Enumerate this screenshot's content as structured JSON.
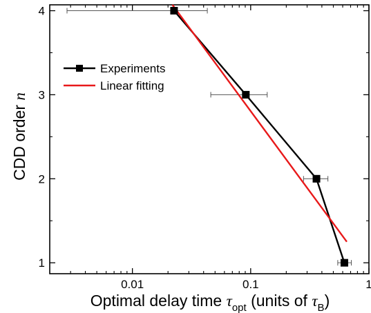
{
  "chart_data": {
    "type": "scatter",
    "xscale": "log",
    "xlim": [
      0.002,
      1
    ],
    "ylim": [
      0.87,
      4.07
    ],
    "xticks": [
      0.01,
      0.1,
      1
    ],
    "xtick_labels": [
      "0.01",
      "0.1",
      "1"
    ],
    "yticks": [
      1,
      2,
      3,
      4
    ],
    "ytick_labels": [
      "1",
      "2",
      "3",
      "4"
    ],
    "xlabel": {
      "prefix": "Optimal delay time ",
      "tau1": "τ",
      "sub1": "opt",
      "middle": " (units of ",
      "tau2": "τ",
      "sub2": "B",
      "suffix": ")"
    },
    "ylabel": {
      "prefix": "CDD order ",
      "var": "n"
    },
    "grid": false,
    "legend_position": "upper-left",
    "series": [
      {
        "name": "Experiments",
        "style": "line+square-markers",
        "color": "#000000",
        "points": [
          {
            "x": 0.0225,
            "y": 4,
            "xerr_low": 0.0028,
            "xerr_high": 0.043
          },
          {
            "x": 0.091,
            "y": 3,
            "xerr_low": 0.046,
            "xerr_high": 0.138
          },
          {
            "x": 0.36,
            "y": 2,
            "xerr_low": 0.28,
            "xerr_high": 0.45
          },
          {
            "x": 0.62,
            "y": 1,
            "xerr_low": 0.545,
            "xerr_high": 0.71
          }
        ]
      },
      {
        "name": "Linear fitting",
        "style": "line",
        "color": "#e8191a",
        "x": [
          0.0218,
          0.65
        ],
        "y": [
          4.07,
          1.25
        ]
      }
    ]
  }
}
